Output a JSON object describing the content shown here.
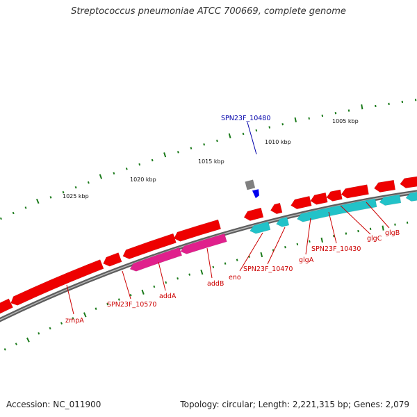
{
  "title": "Streptococcus pneumoniae ATCC 700669, complete genome",
  "footer": {
    "accession": "Accession: NC_011900",
    "stats": "Topology: circular; Length: 2,221,315 bp; Genes: 2,079"
  },
  "colors": {
    "backbone": "#7a7a7a",
    "forward_gene": "#ee0000",
    "cds_teal": "#22c2c8",
    "cds_magenta": "#e0208c",
    "tick": "#1a7a1a",
    "label_red": "#cc0000",
    "label_blue": "#0000aa",
    "marker": "#0000ee",
    "gray_gene": "#808080"
  },
  "scale_labels": [
    "1005 kbp",
    "1010 kbp",
    "1015 kbp",
    "1020 kbp",
    "1025 kbp"
  ],
  "genes": {
    "SPN23F_10480": "SPN23F_10480",
    "zmpA": "zmpA",
    "SPN23F_10570": "SPN23F_10570",
    "addA": "addA",
    "addB": "addB",
    "eno": "eno",
    "SPN23F_10470": "SPN23F_10470",
    "glgA": "glgA",
    "SPN23F_10430": "SPN23F_10430",
    "glgC": "glgC",
    "glgB": "glgB"
  }
}
